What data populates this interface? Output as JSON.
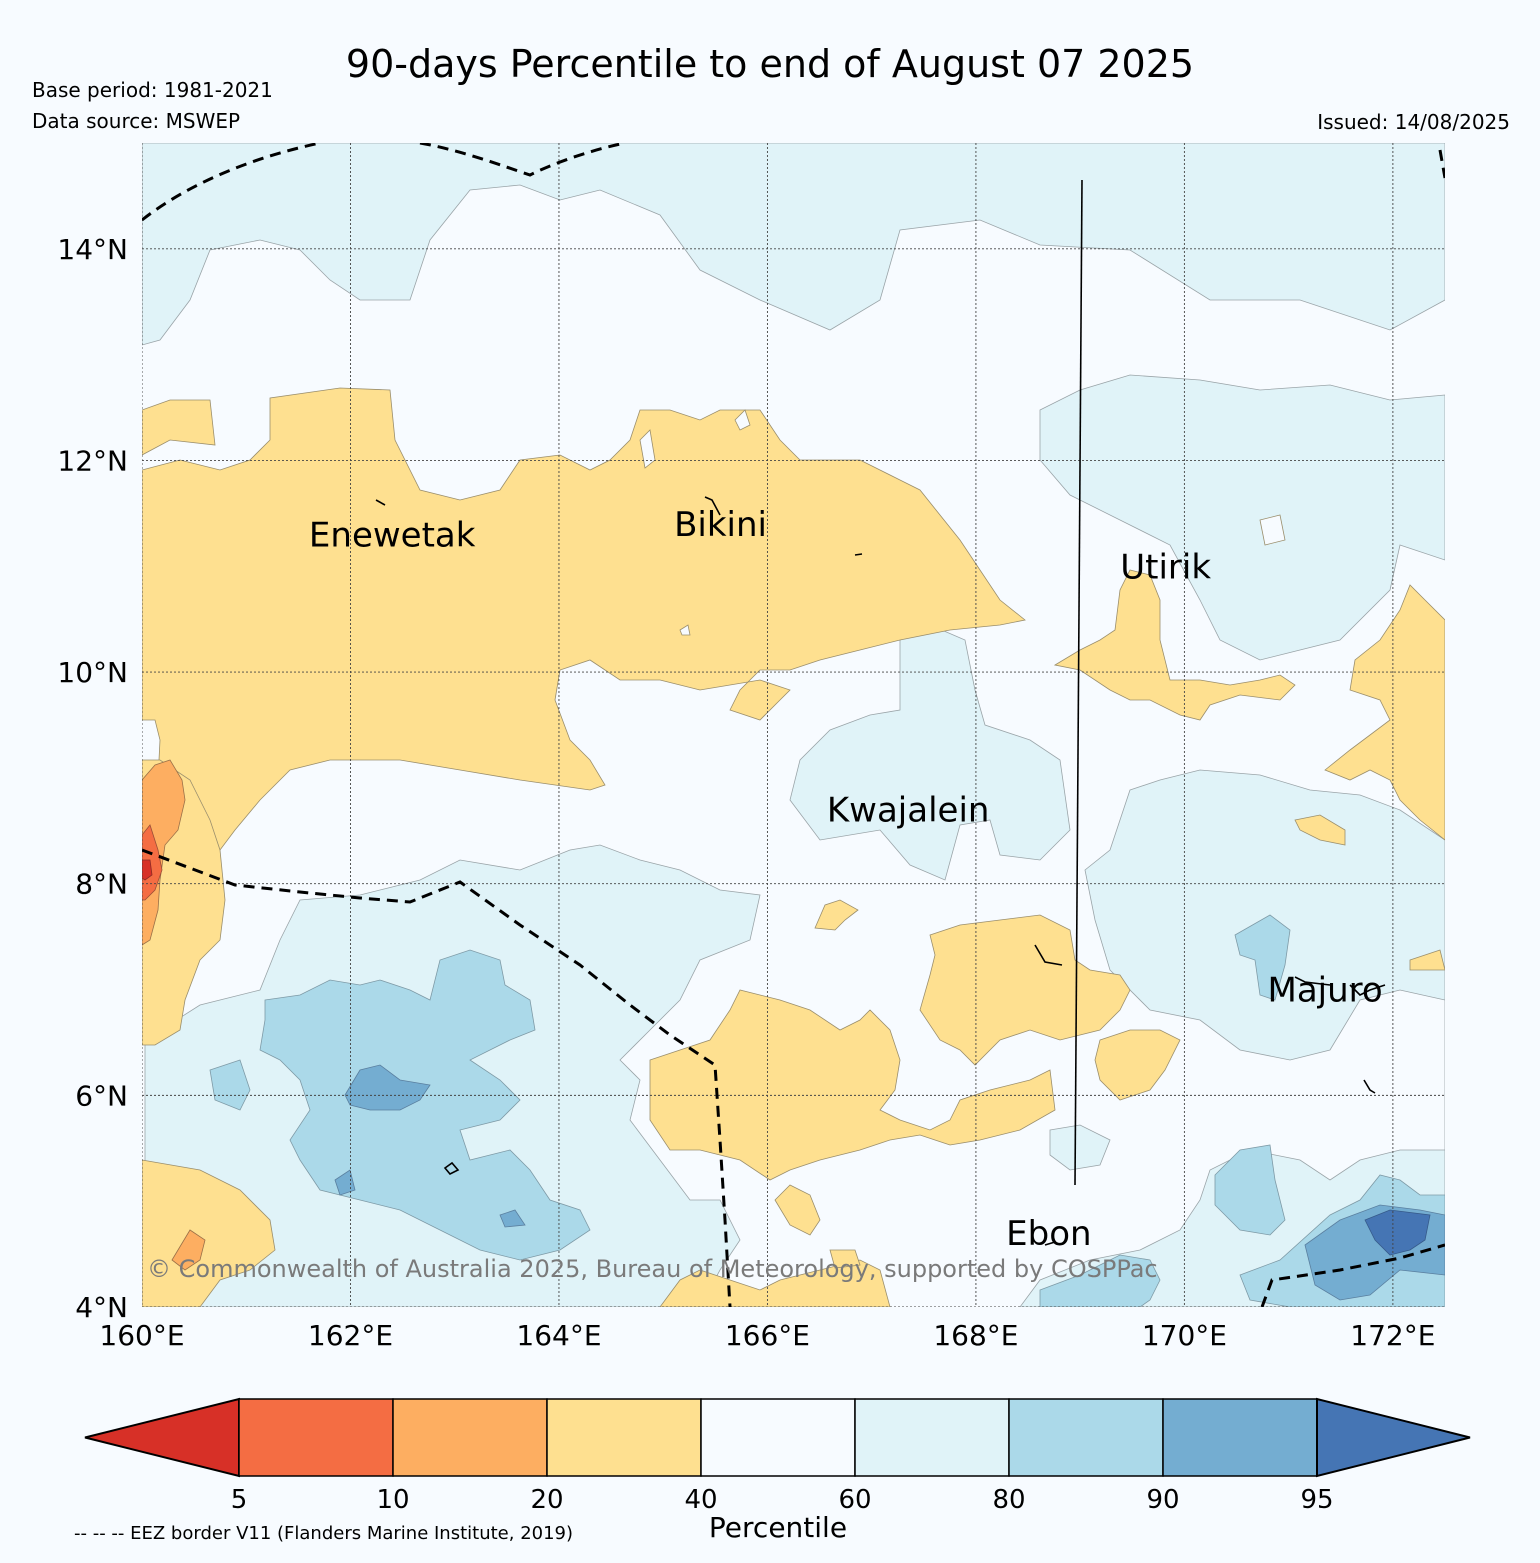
{
  "title": "90-days Percentile to end of August 07 2025",
  "meta": {
    "base_period": "Base period: 1981-2021",
    "data_source": "Data source: MSWEP",
    "issued": "Issued: 14/08/2025"
  },
  "map": {
    "lon_range": [
      160,
      172.5
    ],
    "lat_range": [
      4,
      15
    ],
    "lon_ticks": [
      {
        "value": 160,
        "label": "160°E"
      },
      {
        "value": 162,
        "label": "162°E"
      },
      {
        "value": 164,
        "label": "164°E"
      },
      {
        "value": 166,
        "label": "166°E"
      },
      {
        "value": 168,
        "label": "168°E"
      },
      {
        "value": 170,
        "label": "170°E"
      },
      {
        "value": 172,
        "label": "172°E"
      }
    ],
    "lat_ticks": [
      {
        "value": 4,
        "label": "4°N"
      },
      {
        "value": 6,
        "label": "6°N"
      },
      {
        "value": 8,
        "label": "8°N"
      },
      {
        "value": 10,
        "label": "10°N"
      },
      {
        "value": 12,
        "label": "12°N"
      },
      {
        "value": 14,
        "label": "14°N"
      }
    ],
    "grid": true,
    "places": [
      {
        "name": "Enewetak",
        "lon": 162.4,
        "lat": 11.3
      },
      {
        "name": "Bikini",
        "lon": 165.55,
        "lat": 11.4
      },
      {
        "name": "Utirik",
        "lon": 169.82,
        "lat": 11.0
      },
      {
        "name": "Kwajalein",
        "lon": 167.35,
        "lat": 8.7
      },
      {
        "name": "Majuro",
        "lon": 171.35,
        "lat": 7.0
      },
      {
        "name": "Ebon",
        "lon": 168.7,
        "lat": 4.7
      }
    ],
    "copyright": "© Commonwealth of Australia 2025, Bureau of Meteorology, supported by COSPPac"
  },
  "colorbar": {
    "label": "Percentile",
    "ticks": [
      "5",
      "10",
      "20",
      "40",
      "60",
      "80",
      "90",
      "95"
    ],
    "colors": [
      "#d73027",
      "#f46d43",
      "#fdae61",
      "#fee090",
      "#f7fbff",
      "#e0f3f8",
      "#abd9e9",
      "#74add1",
      "#4575b4"
    ]
  },
  "footnote": "-- -- -- EEZ border V11 (Flanders Marine Institute, 2019)"
}
